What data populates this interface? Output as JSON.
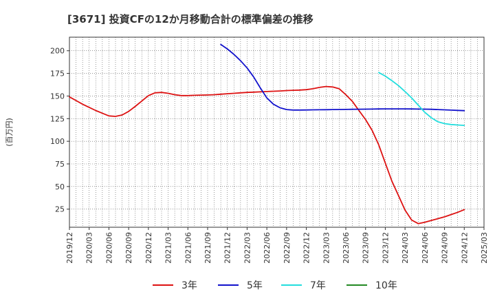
{
  "chart_data": {
    "type": "line",
    "title": "[3671]  投資CFの12か月移動合計の標準偏差の推移",
    "ylabel": "(百万円)",
    "xlabel": "",
    "ylim": [
      5,
      215
    ],
    "yticks": [
      25,
      50,
      75,
      100,
      125,
      150,
      175,
      200
    ],
    "xticks": [
      "2019/12",
      "2020/03",
      "2020/06",
      "2020/09",
      "2020/12",
      "2021/03",
      "2021/06",
      "2021/09",
      "2021/12",
      "2022/03",
      "2022/06",
      "2022/09",
      "2022/12",
      "2023/03",
      "2023/06",
      "2023/09",
      "2023/12",
      "2024/03",
      "2024/06",
      "2024/09",
      "2024/12",
      "2025/03"
    ],
    "grid": true,
    "legend_position": "bottom",
    "series": [
      {
        "name": "3年",
        "color": "#dd1111",
        "x": [
          "2019/12",
          "2020/01",
          "2020/02",
          "2020/03",
          "2020/04",
          "2020/05",
          "2020/06",
          "2020/07",
          "2020/08",
          "2020/09",
          "2020/10",
          "2020/11",
          "2020/12",
          "2021/01",
          "2021/02",
          "2021/03",
          "2021/04",
          "2021/05",
          "2021/06",
          "2021/07",
          "2021/08",
          "2021/09",
          "2021/10",
          "2021/11",
          "2021/12",
          "2022/01",
          "2022/02",
          "2022/03",
          "2022/04",
          "2022/05",
          "2022/06",
          "2022/07",
          "2022/08",
          "2022/09",
          "2022/10",
          "2022/11",
          "2022/12",
          "2023/01",
          "2023/02",
          "2023/03",
          "2023/04",
          "2023/05",
          "2023/06",
          "2023/07",
          "2023/08",
          "2023/09",
          "2023/10",
          "2023/11",
          "2023/12",
          "2024/01",
          "2024/02",
          "2024/03",
          "2024/04",
          "2024/05",
          "2024/06",
          "2024/07",
          "2024/08",
          "2024/09",
          "2024/10",
          "2024/11",
          "2024/12"
        ],
        "y": [
          149,
          145,
          141,
          137.5,
          134,
          131,
          128,
          127.5,
          129,
          133,
          138.5,
          144.5,
          150.5,
          153.5,
          154,
          153,
          151.5,
          150.5,
          150.5,
          150.8,
          151,
          151.2,
          151.5,
          152,
          152.5,
          153,
          153.5,
          154,
          154.3,
          154.6,
          155,
          155.3,
          155.6,
          156,
          156.3,
          156.6,
          157,
          158,
          159.5,
          160.5,
          160,
          158,
          151.5,
          144,
          134,
          124,
          112,
          96,
          76,
          56,
          40,
          24,
          13,
          9,
          10.5,
          12.5,
          14.5,
          16.5,
          19,
          21.5,
          24.5
        ]
      },
      {
        "name": "5年",
        "color": "#1111cc",
        "x": [
          "2021/11",
          "2021/12",
          "2022/01",
          "2022/02",
          "2022/03",
          "2022/04",
          "2022/05",
          "2022/06",
          "2022/07",
          "2022/08",
          "2022/09",
          "2022/10",
          "2022/11",
          "2022/12",
          "2023/01",
          "2023/02",
          "2023/03",
          "2023/04",
          "2023/05",
          "2023/06",
          "2023/07",
          "2023/08",
          "2023/09",
          "2023/10",
          "2023/11",
          "2023/12",
          "2024/01",
          "2024/02",
          "2024/03",
          "2024/04",
          "2024/05",
          "2024/06",
          "2024/07",
          "2024/08",
          "2024/09",
          "2024/10",
          "2024/11",
          "2024/12"
        ],
        "y": [
          207,
          202,
          196,
          189,
          181,
          171,
          159,
          148,
          141,
          137,
          135,
          134.5,
          134.5,
          134.6,
          134.7,
          134.8,
          134.9,
          135,
          135.1,
          135.2,
          135.3,
          135.4,
          135.5,
          135.6,
          135.7,
          135.8,
          135.8,
          135.8,
          135.8,
          135.7,
          135.6,
          135.5,
          135.3,
          135,
          134.7,
          134.4,
          134.1,
          133.8
        ]
      },
      {
        "name": "7年",
        "color": "#22dddd",
        "x": [
          "2023/11",
          "2023/12",
          "2024/01",
          "2024/02",
          "2024/03",
          "2024/04",
          "2024/05",
          "2024/06",
          "2024/07",
          "2024/08",
          "2024/09",
          "2024/10",
          "2024/11",
          "2024/12"
        ],
        "y": [
          176,
          172,
          167,
          161.5,
          155,
          148,
          140,
          132,
          126,
          121.5,
          119.5,
          118.5,
          118,
          117.5
        ]
      },
      {
        "name": "10年",
        "color": "#228822",
        "x": [],
        "y": []
      }
    ]
  }
}
